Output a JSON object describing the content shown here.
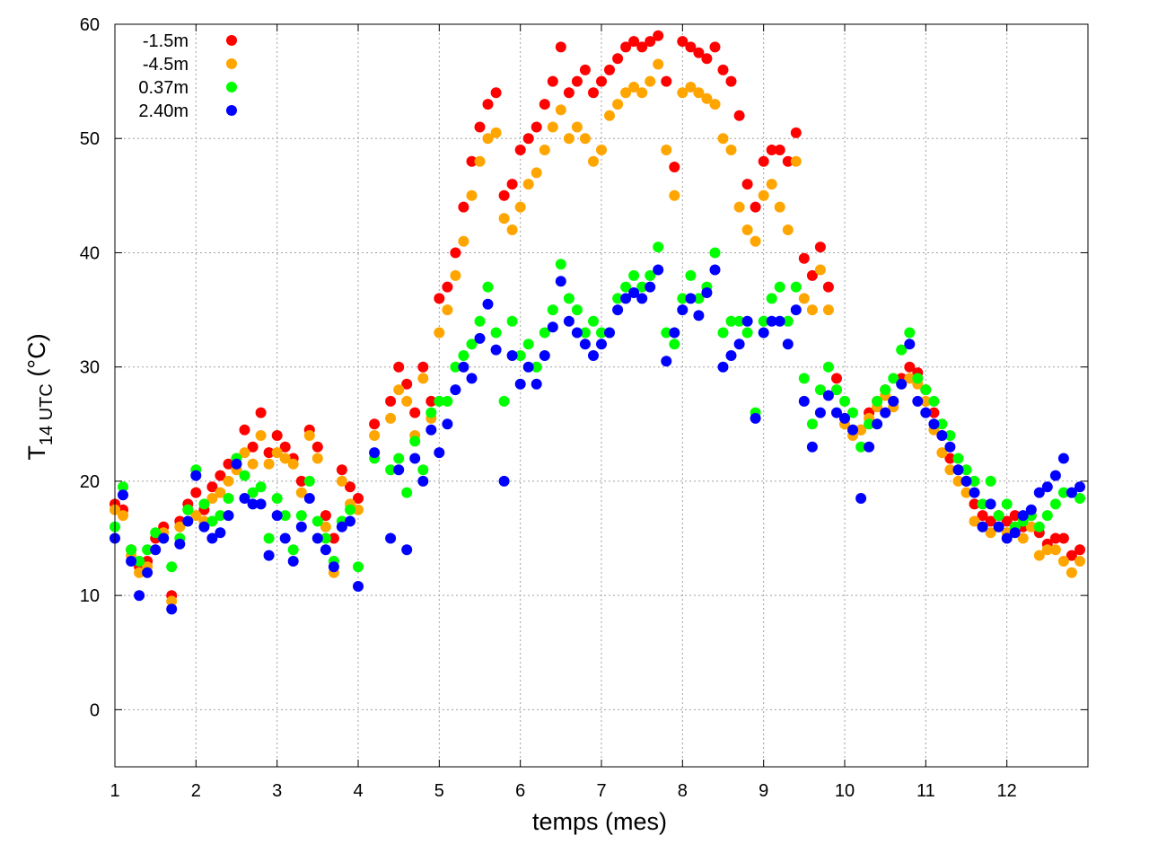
{
  "chart_data": {
    "type": "scatter",
    "title": "",
    "xlabel": "temps (mes)",
    "ylabel": {
      "main": "T",
      "subscript": "14 UTC",
      "unit": " (°C)"
    },
    "xlim": [
      1,
      13
    ],
    "ylim": [
      -5,
      60
    ],
    "x_ticks": [
      1,
      2,
      3,
      4,
      5,
      6,
      7,
      8,
      9,
      10,
      11,
      12
    ],
    "y_ticks": [
      0,
      10,
      20,
      30,
      40,
      50,
      60
    ],
    "grid": true,
    "legend_position": "top-left",
    "series": [
      {
        "name": "-1.5m",
        "color": "#ff0000",
        "x": [
          1.0,
          1.1,
          1.2,
          1.3,
          1.4,
          1.5,
          1.6,
          1.7,
          1.8,
          1.9,
          2.0,
          2.1,
          2.2,
          2.3,
          2.4,
          2.5,
          2.6,
          2.7,
          2.8,
          2.9,
          3.0,
          3.1,
          3.2,
          3.3,
          3.4,
          3.5,
          3.6,
          3.7,
          3.8,
          3.9,
          4.0,
          4.2,
          4.4,
          4.5,
          4.6,
          4.7,
          4.8,
          4.9,
          5.0,
          5.1,
          5.2,
          5.3,
          5.4,
          5.5,
          5.6,
          5.7,
          5.8,
          5.9,
          6.0,
          6.1,
          6.2,
          6.3,
          6.4,
          6.5,
          6.6,
          6.7,
          6.8,
          6.9,
          7.0,
          7.1,
          7.2,
          7.3,
          7.4,
          7.5,
          7.6,
          7.7,
          7.8,
          7.9,
          8.0,
          8.1,
          8.2,
          8.3,
          8.4,
          8.5,
          8.6,
          8.7,
          8.8,
          8.9,
          9.0,
          9.1,
          9.2,
          9.3,
          9.4,
          9.5,
          9.6,
          9.7,
          9.8,
          9.9,
          10.0,
          10.1,
          10.2,
          10.3,
          10.4,
          10.5,
          10.6,
          10.7,
          10.8,
          10.9,
          11.0,
          11.1,
          11.2,
          11.3,
          11.4,
          11.5,
          11.6,
          11.7,
          11.8,
          11.9,
          12.0,
          12.1,
          12.2,
          12.3,
          12.4,
          12.5,
          12.6,
          12.7,
          12.8,
          12.9
        ],
        "y": [
          18,
          17.5,
          14,
          12.5,
          13,
          15,
          16,
          10,
          16.5,
          18,
          19,
          17.5,
          19.5,
          20.5,
          21.5,
          22,
          24.5,
          23,
          26,
          22.5,
          24,
          23,
          22,
          20,
          24.5,
          23,
          17,
          15,
          21,
          19.5,
          18.5,
          25,
          27,
          30,
          28.5,
          26,
          30,
          27,
          36,
          37,
          40,
          44,
          48,
          51,
          53,
          54,
          45,
          46,
          49,
          50,
          51,
          53,
          55,
          58,
          54,
          55,
          56,
          54,
          55,
          56,
          57,
          58,
          58.5,
          58,
          58.5,
          59,
          55,
          47.5,
          58.5,
          58,
          57.5,
          57,
          58,
          56,
          55,
          52,
          46,
          44,
          48,
          49,
          49,
          48,
          50.5,
          39.5,
          38,
          40.5,
          37,
          29,
          25.5,
          24.5,
          24.5,
          26,
          27,
          28,
          27,
          29,
          30,
          29.5,
          28,
          26,
          24,
          22,
          21,
          20,
          18,
          17,
          16.5,
          17,
          16.5,
          17,
          16,
          17,
          15.5,
          14.5,
          15,
          15,
          13.5,
          14
        ]
      },
      {
        "name": "-4.5m",
        "color": "#ffa500",
        "x": [
          1.0,
          1.1,
          1.2,
          1.3,
          1.4,
          1.5,
          1.6,
          1.7,
          1.8,
          1.9,
          2.0,
          2.1,
          2.2,
          2.3,
          2.4,
          2.5,
          2.6,
          2.7,
          2.8,
          2.9,
          3.0,
          3.1,
          3.2,
          3.3,
          3.4,
          3.5,
          3.6,
          3.7,
          3.8,
          3.9,
          4.0,
          4.2,
          4.4,
          4.5,
          4.6,
          4.7,
          4.8,
          4.9,
          5.0,
          5.1,
          5.2,
          5.3,
          5.4,
          5.5,
          5.6,
          5.7,
          5.8,
          5.9,
          6.0,
          6.1,
          6.2,
          6.3,
          6.4,
          6.5,
          6.6,
          6.7,
          6.8,
          6.9,
          7.0,
          7.1,
          7.2,
          7.3,
          7.4,
          7.5,
          7.6,
          7.7,
          7.8,
          7.9,
          8.0,
          8.1,
          8.2,
          8.3,
          8.4,
          8.5,
          8.6,
          8.7,
          8.8,
          8.9,
          9.0,
          9.1,
          9.2,
          9.3,
          9.4,
          9.5,
          9.6,
          9.7,
          9.8,
          9.9,
          10.0,
          10.1,
          10.2,
          10.3,
          10.4,
          10.5,
          10.6,
          10.7,
          10.8,
          10.9,
          11.0,
          11.1,
          11.2,
          11.3,
          11.4,
          11.5,
          11.6,
          11.7,
          11.8,
          11.9,
          12.0,
          12.1,
          12.2,
          12.3,
          12.4,
          12.5,
          12.6,
          12.7,
          12.8,
          12.9
        ],
        "y": [
          17.5,
          17,
          13.5,
          12,
          12.5,
          14,
          15.5,
          9.5,
          16,
          17.5,
          17,
          16.5,
          18.5,
          19,
          20,
          21,
          22.5,
          21.5,
          24,
          21.5,
          22.5,
          22,
          21.5,
          19,
          24,
          22,
          16,
          12,
          20,
          18,
          17.5,
          24,
          25.5,
          28,
          27,
          24,
          29,
          25.5,
          33,
          35,
          38,
          41,
          45,
          48,
          50,
          50.5,
          43,
          42,
          44,
          46,
          47,
          49,
          51,
          52.5,
          50,
          51,
          50,
          48,
          49,
          52,
          53,
          54,
          54.5,
          54,
          55,
          56.5,
          49,
          45,
          54,
          54.5,
          54,
          53.5,
          53,
          50,
          49,
          44,
          42,
          41,
          45,
          46,
          44,
          42,
          48,
          36,
          35,
          38.5,
          35,
          28,
          25,
          24,
          24.5,
          25.5,
          26.5,
          27.5,
          26.5,
          28.5,
          29,
          28.5,
          27,
          24.5,
          22.5,
          21,
          20,
          19,
          16.5,
          16,
          15.5,
          16,
          15.5,
          16,
          15,
          16,
          13.5,
          14,
          14,
          13,
          12,
          13
        ]
      },
      {
        "name": "0.37m",
        "color": "#00ff00",
        "x": [
          1.0,
          1.1,
          1.2,
          1.3,
          1.4,
          1.5,
          1.6,
          1.7,
          1.8,
          1.9,
          2.0,
          2.1,
          2.2,
          2.3,
          2.4,
          2.5,
          2.6,
          2.7,
          2.8,
          2.9,
          3.0,
          3.1,
          3.2,
          3.3,
          3.4,
          3.5,
          3.6,
          3.7,
          3.8,
          3.9,
          4.0,
          4.2,
          4.4,
          4.5,
          4.6,
          4.7,
          4.8,
          4.9,
          5.0,
          5.1,
          5.2,
          5.3,
          5.4,
          5.5,
          5.6,
          5.7,
          5.8,
          5.9,
          6.0,
          6.1,
          6.2,
          6.3,
          6.4,
          6.5,
          6.6,
          6.7,
          6.8,
          6.9,
          7.0,
          7.1,
          7.2,
          7.3,
          7.4,
          7.5,
          7.6,
          7.7,
          7.8,
          7.9,
          8.0,
          8.1,
          8.2,
          8.3,
          8.4,
          8.5,
          8.6,
          8.7,
          8.8,
          8.9,
          9.0,
          9.1,
          9.2,
          9.3,
          9.4,
          9.5,
          9.6,
          9.7,
          9.8,
          9.9,
          10.0,
          10.1,
          10.2,
          10.3,
          10.4,
          10.5,
          10.6,
          10.7,
          10.8,
          10.9,
          11.0,
          11.1,
          11.2,
          11.3,
          11.4,
          11.5,
          11.6,
          11.7,
          11.8,
          11.9,
          12.0,
          12.1,
          12.2,
          12.3,
          12.4,
          12.5,
          12.6,
          12.7,
          12.8,
          12.9
        ],
        "y": [
          16,
          19.5,
          14,
          13,
          14,
          15.5,
          15,
          12.5,
          15,
          17.5,
          21,
          18,
          16.5,
          17,
          18.5,
          22,
          20.5,
          19,
          19.5,
          15,
          18.5,
          17,
          14,
          17,
          20,
          16.5,
          15,
          13,
          16.5,
          17.5,
          12.5,
          22,
          21,
          22,
          19,
          23.5,
          21,
          26,
          27,
          27,
          30,
          31,
          32,
          34,
          37,
          33,
          27,
          34,
          31,
          32,
          30,
          33,
          35,
          39,
          36,
          35,
          33,
          34,
          33,
          33,
          36,
          37,
          38,
          37,
          38,
          40.5,
          33,
          32,
          36,
          38,
          36,
          37,
          40,
          33,
          34,
          34,
          33,
          26,
          34,
          36,
          37,
          34,
          37,
          29,
          25,
          28,
          30,
          28,
          27,
          26,
          23,
          25,
          27,
          28,
          29,
          31.5,
          33,
          29,
          28,
          27,
          25,
          24,
          22,
          21,
          20,
          18,
          20,
          17,
          18,
          16,
          16.5,
          17,
          16,
          17,
          18,
          19,
          19,
          18.5
        ]
      },
      {
        "name": "2.40m",
        "color": "#0000ff",
        "x": [
          1.0,
          1.1,
          1.2,
          1.3,
          1.4,
          1.5,
          1.6,
          1.7,
          1.8,
          1.9,
          2.0,
          2.1,
          2.2,
          2.3,
          2.4,
          2.5,
          2.6,
          2.7,
          2.8,
          2.9,
          3.0,
          3.1,
          3.2,
          3.3,
          3.4,
          3.5,
          3.6,
          3.7,
          3.8,
          3.9,
          4.0,
          4.2,
          4.4,
          4.5,
          4.6,
          4.7,
          4.8,
          4.9,
          5.0,
          5.1,
          5.2,
          5.3,
          5.4,
          5.5,
          5.6,
          5.7,
          5.8,
          5.9,
          6.0,
          6.1,
          6.2,
          6.3,
          6.4,
          6.5,
          6.6,
          6.7,
          6.8,
          6.9,
          7.0,
          7.1,
          7.2,
          7.3,
          7.4,
          7.5,
          7.6,
          7.7,
          7.8,
          7.9,
          8.0,
          8.1,
          8.2,
          8.3,
          8.4,
          8.5,
          8.6,
          8.7,
          8.8,
          8.9,
          9.0,
          9.1,
          9.2,
          9.3,
          9.4,
          9.5,
          9.6,
          9.7,
          9.8,
          9.9,
          10.0,
          10.1,
          10.2,
          10.3,
          10.4,
          10.5,
          10.6,
          10.7,
          10.8,
          10.9,
          11.0,
          11.1,
          11.2,
          11.3,
          11.4,
          11.5,
          11.6,
          11.7,
          11.8,
          11.9,
          12.0,
          12.1,
          12.2,
          12.3,
          12.4,
          12.5,
          12.6,
          12.7,
          12.8,
          12.9
        ],
        "y": [
          15,
          18.8,
          13,
          10,
          12,
          14,
          15,
          8.8,
          14.5,
          16.5,
          20.5,
          16,
          15,
          15.5,
          17,
          21.5,
          18.5,
          18,
          18,
          13.5,
          17,
          15,
          13,
          16,
          18.5,
          15,
          14,
          12.5,
          16,
          16.5,
          10.8,
          22.5,
          15,
          21,
          14,
          22,
          20,
          24.5,
          22.5,
          25,
          28,
          30,
          29,
          32.5,
          35.5,
          31.5,
          20,
          31,
          28.5,
          30,
          28.5,
          31,
          33.5,
          37.5,
          34,
          33,
          32,
          31,
          32,
          33,
          35,
          36,
          36.5,
          36,
          37,
          38.5,
          30.5,
          33,
          35,
          36,
          34.5,
          36.5,
          38.5,
          30,
          31,
          32,
          34,
          25.5,
          33,
          34,
          34,
          32,
          35,
          27,
          23,
          26,
          27.5,
          26,
          25.5,
          24.5,
          18.5,
          23,
          25,
          26,
          27,
          28.5,
          32,
          27,
          26,
          25,
          24,
          23,
          21,
          20,
          19,
          16,
          18,
          16,
          15,
          15.5,
          17,
          17.5,
          19,
          19.5,
          20.5,
          22,
          19,
          19.5
        ]
      }
    ]
  }
}
